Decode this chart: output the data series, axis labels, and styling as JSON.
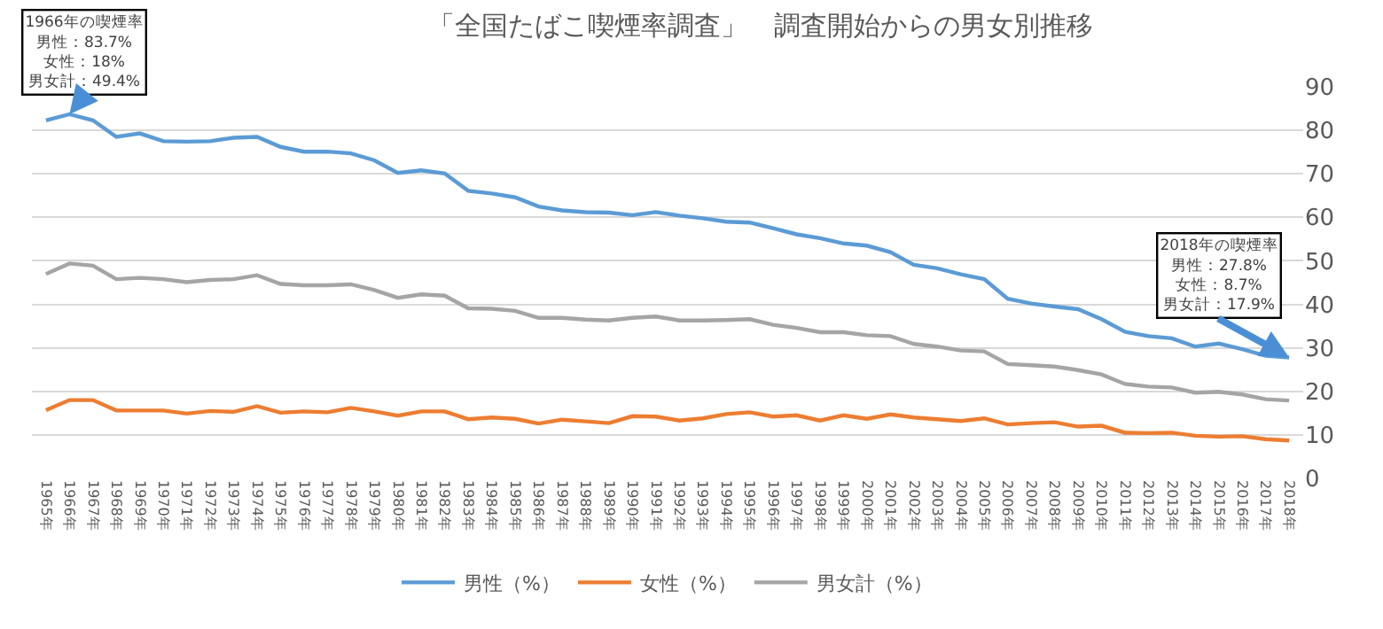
{
  "chart_data": {
    "type": "line",
    "title": "「全国たばこ喫煙率調査」　調査開始からの男女別推移",
    "categories": [
      "1965年",
      "1966年",
      "1967年",
      "1968年",
      "1969年",
      "1970年",
      "1971年",
      "1972年",
      "1973年",
      "1974年",
      "1975年",
      "1976年",
      "1977年",
      "1978年",
      "1979年",
      "1980年",
      "1981年",
      "1982年",
      "1983年",
      "1984年",
      "1985年",
      "1986年",
      "1987年",
      "1988年",
      "1989年",
      "1990年",
      "1991年",
      "1992年",
      "1993年",
      "1994年",
      "1995年",
      "1996年",
      "1997年",
      "1998年",
      "1999年",
      "2000年",
      "2001年",
      "2002年",
      "2003年",
      "2004年",
      "2005年",
      "2006年",
      "2007年",
      "2008年",
      "2009年",
      "2010年",
      "2011年",
      "2012年",
      "2013年",
      "2014年",
      "2015年",
      "2016年",
      "2017年",
      "2018年"
    ],
    "series": [
      {
        "name": "男性（%）",
        "color": "#5b9bd5",
        "values": [
          82.3,
          83.7,
          82.3,
          78.5,
          79.3,
          77.5,
          77.4,
          77.5,
          78.3,
          78.5,
          76.2,
          75.1,
          75.1,
          74.7,
          73.1,
          70.2,
          70.8,
          70.1,
          66.1,
          65.5,
          64.6,
          62.5,
          61.6,
          61.2,
          61.1,
          60.5,
          61.2,
          60.4,
          59.8,
          59.0,
          58.8,
          57.5,
          56.1,
          55.2,
          54.0,
          53.5,
          52.0,
          49.1,
          48.3,
          46.9,
          45.8,
          41.3,
          40.2,
          39.5,
          38.9,
          36.6,
          33.7,
          32.7,
          32.2,
          30.3,
          31.0,
          29.7,
          28.2,
          27.8
        ]
      },
      {
        "name": "女性（%）",
        "color": "#ed7d31",
        "values": [
          15.7,
          18.0,
          18.0,
          15.6,
          15.6,
          15.6,
          14.9,
          15.5,
          15.3,
          16.6,
          15.1,
          15.4,
          15.2,
          16.2,
          15.4,
          14.4,
          15.4,
          15.4,
          13.6,
          14.0,
          13.7,
          12.6,
          13.5,
          13.1,
          12.7,
          14.3,
          14.2,
          13.3,
          13.8,
          14.8,
          15.2,
          14.2,
          14.5,
          13.3,
          14.5,
          13.7,
          14.7,
          14.0,
          13.6,
          13.2,
          13.8,
          12.4,
          12.7,
          12.9,
          11.9,
          12.1,
          10.5,
          10.4,
          10.5,
          9.8,
          9.6,
          9.7,
          9.0,
          8.7
        ]
      },
      {
        "name": "男女計（%）",
        "color": "#a5a5a5",
        "values": [
          47.0,
          49.4,
          48.9,
          45.8,
          46.1,
          45.8,
          45.1,
          45.6,
          45.8,
          46.7,
          44.7,
          44.4,
          44.4,
          44.6,
          43.3,
          41.5,
          42.3,
          42.0,
          39.1,
          39.0,
          38.5,
          36.9,
          36.9,
          36.5,
          36.3,
          36.9,
          37.2,
          36.3,
          36.3,
          36.4,
          36.6,
          35.3,
          34.6,
          33.6,
          33.6,
          32.9,
          32.7,
          30.9,
          30.3,
          29.4,
          29.2,
          26.3,
          26.0,
          25.7,
          24.9,
          23.9,
          21.7,
          21.1,
          20.9,
          19.7,
          19.9,
          19.3,
          18.2,
          17.9
        ]
      }
    ],
    "annotations": [
      {
        "text": "1966年の喫煙率男性：83.7%女性：18%男女計：49.4%",
        "x": "1966年",
        "y": 83.7
      },
      {
        "text": "2018年の喫煙率男性：27.8%女性：8.7%男女計：17.9%",
        "x": "2018年",
        "y": 27.8
      }
    ],
    "ylim": [
      0,
      90
    ],
    "yticks": [
      0,
      10,
      20,
      30,
      40,
      50,
      60,
      70,
      80,
      90
    ],
    "grid": "y",
    "legend": "bottom",
    "marker": "none",
    "line_style": "solid"
  }
}
